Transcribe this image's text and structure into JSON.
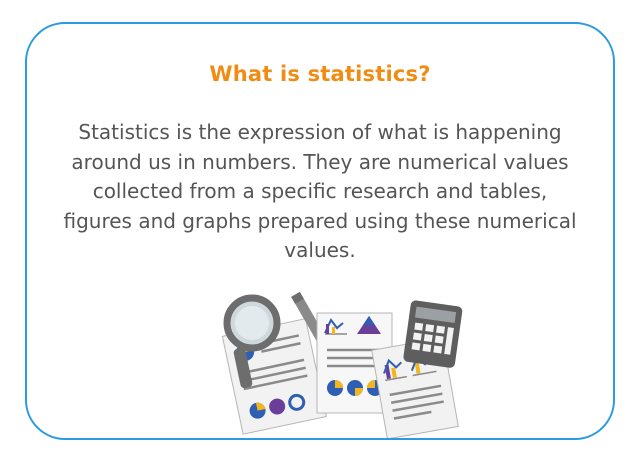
{
  "card": {
    "title": "What is statistics?",
    "description": "Statistics is the expression of what is happening around us in numbers. They are numerical values collected from a specific research and tables, figures and graphs prepared using these numerical values."
  },
  "illustration": {
    "icons": [
      "magnifying-glass-icon",
      "pencil-icon",
      "report-paper-icon",
      "calculator-icon",
      "pie-chart-icon",
      "bar-chart-icon",
      "triangle-chart-icon"
    ],
    "colors": {
      "border": "#2b9be0",
      "title": "#f08c14",
      "text": "#555555",
      "yellow": "#f3b61f",
      "blue": "#2f5fb3",
      "purple": "#6a3f9a",
      "gray": "#8a8a8a"
    }
  }
}
